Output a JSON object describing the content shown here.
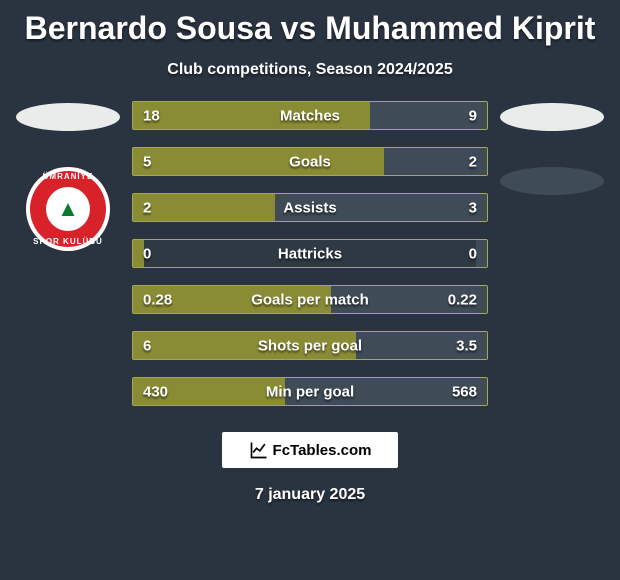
{
  "title": "Bernardo Sousa vs Muhammed Kiprit",
  "subtitle": "Club competitions, Season 2024/2025",
  "date": "7 january 2025",
  "footer_brand": "FcTables.com",
  "badge": {
    "top": "ÜMRANİYE",
    "bot": "SPOR KULÜBÜ"
  },
  "palette": {
    "bg": "#2a3440",
    "bar_left_fill": "#8a8c35",
    "bar_right_fill": "#3f4b56",
    "bar_border": "#a5a857",
    "bar_track": "#2f3944"
  },
  "bars": [
    {
      "label": "Matches",
      "left_val": "18",
      "right_val": "9",
      "left_pct": 67,
      "right_pct": 33
    },
    {
      "label": "Goals",
      "left_val": "5",
      "right_val": "2",
      "left_pct": 71,
      "right_pct": 29
    },
    {
      "label": "Assists",
      "left_val": "2",
      "right_val": "3",
      "left_pct": 40,
      "right_pct": 60
    },
    {
      "label": "Hattricks",
      "left_val": "0",
      "right_val": "0",
      "left_pct": 3,
      "right_pct": 3
    },
    {
      "label": "Goals per match",
      "left_val": "0.28",
      "right_val": "0.22",
      "left_pct": 56,
      "right_pct": 44
    },
    {
      "label": "Shots per goal",
      "left_val": "6",
      "right_val": "3.5",
      "left_pct": 63,
      "right_pct": 37
    },
    {
      "label": "Min per goal",
      "left_val": "430",
      "right_val": "568",
      "left_pct": 43,
      "right_pct": 57
    }
  ]
}
